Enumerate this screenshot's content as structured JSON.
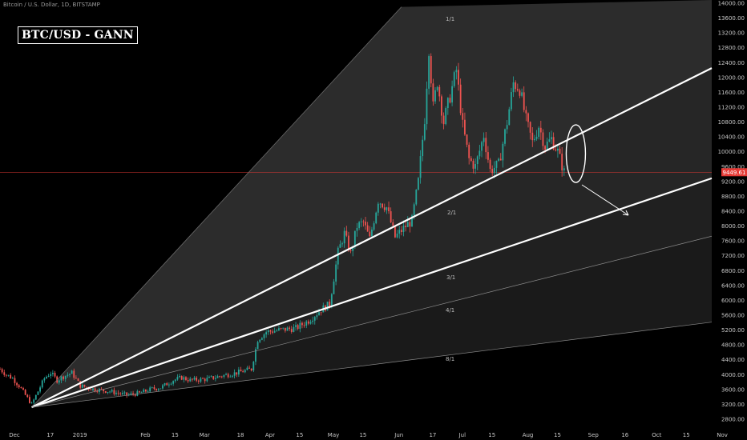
{
  "header": {
    "symbol_line": "Bitcoin / U.S. Dollar, 1D, BITSTAMP",
    "title_box": "BTC/USD - GANN"
  },
  "colors": {
    "up": "#26a69a",
    "down": "#ef5350",
    "price_line": "#e53935",
    "background": "#000000",
    "fan_fill": "#2a2a2a",
    "fan_line": "#ffffff"
  },
  "chart_data": {
    "type": "candlestick",
    "title": "BTC/USD - GANN",
    "ylim": [
      2700,
      14400
    ],
    "y_ticks": [
      2800,
      3200,
      3600,
      4000,
      4400,
      4800,
      5200,
      5600,
      6000,
      6400,
      6800,
      7200,
      7600,
      8000,
      8400,
      8800,
      9200,
      9600,
      10000,
      10400,
      10800,
      11200,
      11600,
      12000,
      12400,
      12800,
      13200,
      13600,
      14000
    ],
    "y_tick_labels": [
      "2800.00",
      "3200.00",
      "3600.00",
      "4000.00",
      "4400.00",
      "4800.00",
      "5200.00",
      "5600.00",
      "6000.00",
      "6400.00",
      "6800.00",
      "7200.00",
      "7600.00",
      "8000.00",
      "8400.00",
      "8800.00",
      "9200.00",
      "9600.00",
      "10000.00",
      "10400.00",
      "10800.00",
      "11200.00",
      "11600.00",
      "12000.00",
      "12400.00",
      "12800.00",
      "13200.00",
      "13600.00",
      "14000.00"
    ],
    "x_ticks": [
      "Dec",
      "17",
      "2019",
      "Feb",
      "15",
      "Mar",
      "18",
      "Apr",
      "15",
      "May",
      "15",
      "Jun",
      "17",
      "Jul",
      "15",
      "Aug",
      "15",
      "Sep",
      "16",
      "Oct",
      "15",
      "Nov"
    ],
    "x_tick_days": [
      0,
      17,
      31,
      62,
      76,
      90,
      107,
      121,
      135,
      151,
      165,
      182,
      198,
      212,
      226,
      243,
      257,
      274,
      289,
      304,
      318,
      335
    ],
    "current_price": 9449.61,
    "current_price_label": "9449.61",
    "fan_labels": [
      "1/1",
      "2/1",
      "3/1",
      "4/1",
      "8/1"
    ],
    "gann_fan": {
      "origin": {
        "day": 15,
        "price": 3120
      },
      "lines": [
        {
          "label": "1/1",
          "day": 190,
          "price": 13900
        },
        {
          "label": "2/1",
          "day": 335,
          "price": 12200
        },
        {
          "label": "3/1",
          "day": 335,
          "price": 9250
        },
        {
          "label": "4/1",
          "day": 335,
          "price": 7700
        },
        {
          "label": "8/1",
          "day": 335,
          "price": 5400
        }
      ]
    },
    "projection_arrow": {
      "from": {
        "day": 272,
        "price": 9600
      },
      "to": {
        "day": 302,
        "price": 8650
      }
    },
    "highlight_ellipse": {
      "day": 268,
      "price": 9950
    },
    "ohlc_keypoints": [
      {
        "day": 0,
        "close": 4150
      },
      {
        "day": 3,
        "close": 4000
      },
      {
        "day": 6,
        "close": 3900
      },
      {
        "day": 9,
        "close": 3700
      },
      {
        "day": 12,
        "close": 3450
      },
      {
        "day": 15,
        "close": 3200
      },
      {
        "day": 18,
        "close": 3550
      },
      {
        "day": 21,
        "close": 3900
      },
      {
        "day": 24,
        "close": 4050
      },
      {
        "day": 27,
        "close": 3850
      },
      {
        "day": 30,
        "close": 3950
      },
      {
        "day": 34,
        "close": 4050
      },
      {
        "day": 38,
        "close": 3700
      },
      {
        "day": 45,
        "close": 3600
      },
      {
        "day": 52,
        "close": 3550
      },
      {
        "day": 60,
        "close": 3450
      },
      {
        "day": 66,
        "close": 3500
      },
      {
        "day": 72,
        "close": 3620
      },
      {
        "day": 76,
        "close": 3650
      },
      {
        "day": 82,
        "close": 3850
      },
      {
        "day": 86,
        "close": 3920
      },
      {
        "day": 90,
        "close": 3850
      },
      {
        "day": 98,
        "close": 3880
      },
      {
        "day": 106,
        "close": 3980
      },
      {
        "day": 112,
        "close": 4050
      },
      {
        "day": 119,
        "close": 4150
      },
      {
        "day": 122,
        "close": 4950
      },
      {
        "day": 126,
        "close": 5150
      },
      {
        "day": 132,
        "close": 5200
      },
      {
        "day": 140,
        "close": 5250
      },
      {
        "day": 146,
        "close": 5450
      },
      {
        "day": 152,
        "close": 5750
      },
      {
        "day": 156,
        "close": 5900
      },
      {
        "day": 160,
        "close": 7300
      },
      {
        "day": 163,
        "close": 7800
      },
      {
        "day": 166,
        "close": 7250
      },
      {
        "day": 169,
        "close": 8000
      },
      {
        "day": 172,
        "close": 8100
      },
      {
        "day": 175,
        "close": 7650
      },
      {
        "day": 179,
        "close": 8700
      },
      {
        "day": 183,
        "close": 8500
      },
      {
        "day": 187,
        "close": 7700
      },
      {
        "day": 192,
        "close": 8000
      },
      {
        "day": 195,
        "close": 8150
      },
      {
        "day": 198,
        "close": 9200
      },
      {
        "day": 201,
        "close": 10900
      },
      {
        "day": 203,
        "close": 12800
      },
      {
        "day": 205,
        "close": 11200
      },
      {
        "day": 207,
        "close": 11900
      },
      {
        "day": 210,
        "close": 10800
      },
      {
        "day": 213,
        "close": 11500
      },
      {
        "day": 216,
        "close": 12200
      },
      {
        "day": 219,
        "close": 10700
      },
      {
        "day": 222,
        "close": 9800
      },
      {
        "day": 225,
        "close": 9600
      },
      {
        "day": 229,
        "close": 10450
      },
      {
        "day": 232,
        "close": 9500
      },
      {
        "day": 236,
        "close": 9650
      },
      {
        "day": 240,
        "close": 10800
      },
      {
        "day": 243,
        "close": 11850
      },
      {
        "day": 246,
        "close": 11700
      },
      {
        "day": 249,
        "close": 10850
      },
      {
        "day": 252,
        "close": 10250
      },
      {
        "day": 255,
        "close": 10700
      },
      {
        "day": 258,
        "close": 10150
      },
      {
        "day": 261,
        "close": 10350
      },
      {
        "day": 264,
        "close": 10000
      },
      {
        "day": 267,
        "close": 9449.61
      }
    ]
  }
}
